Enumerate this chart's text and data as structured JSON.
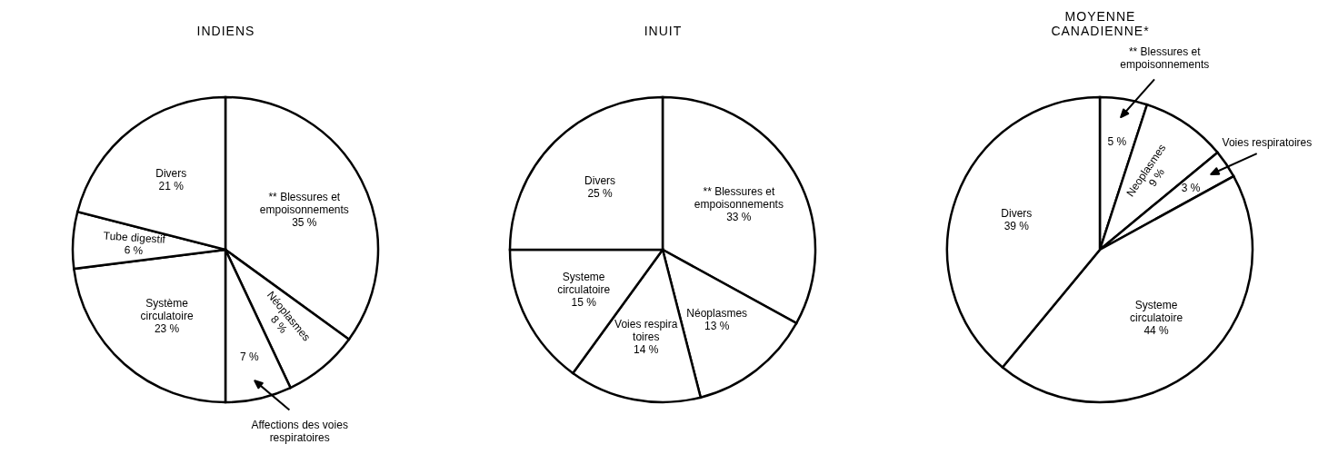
{
  "chart_data": [
    {
      "type": "pie",
      "title": "INDIENS",
      "categories": [
        "** Blessures et empoisonnements",
        "Néoplasmes",
        "Affections des voies respiratoires",
        "Système circulatoire",
        "Tube digestif",
        "Divers"
      ],
      "values": [
        35,
        8,
        7,
        23,
        6,
        21
      ],
      "value_labels": [
        "35 %",
        "8 %",
        "7 %",
        "23 %",
        "6 %",
        "21 %"
      ],
      "colors": [
        "#ffffff",
        "#ffffff",
        "#ffffff",
        "#ffffff",
        "#ffffff",
        "#ffffff"
      ]
    },
    {
      "type": "pie",
      "title": "INUIT",
      "categories": [
        "** Blessures et empoisonnements",
        "Néoplasmes",
        "Voies respira toires",
        "Systeme circulatoire",
        "Divers"
      ],
      "values": [
        33,
        13,
        14,
        15,
        25
      ],
      "value_labels": [
        "33 %",
        "13 %",
        "14 %",
        "15 %",
        "25 %"
      ],
      "colors": [
        "#ffffff",
        "#ffffff",
        "#ffffff",
        "#ffffff",
        "#ffffff"
      ]
    },
    {
      "type": "pie",
      "title": "MOYENNE CANADIENNE*",
      "categories": [
        "** Blessures et empoisonnements",
        "Neoplasmes",
        "Voies respiratoires",
        "Systeme circulatoire",
        "Divers"
      ],
      "values": [
        5,
        9,
        3,
        44,
        39
      ],
      "value_labels": [
        "5 %",
        "9 %",
        "3 %",
        "44 %",
        "39 %"
      ],
      "colors": [
        "#ffffff",
        "#ffffff",
        "#ffffff",
        "#ffffff",
        "#ffffff"
      ]
    }
  ]
}
